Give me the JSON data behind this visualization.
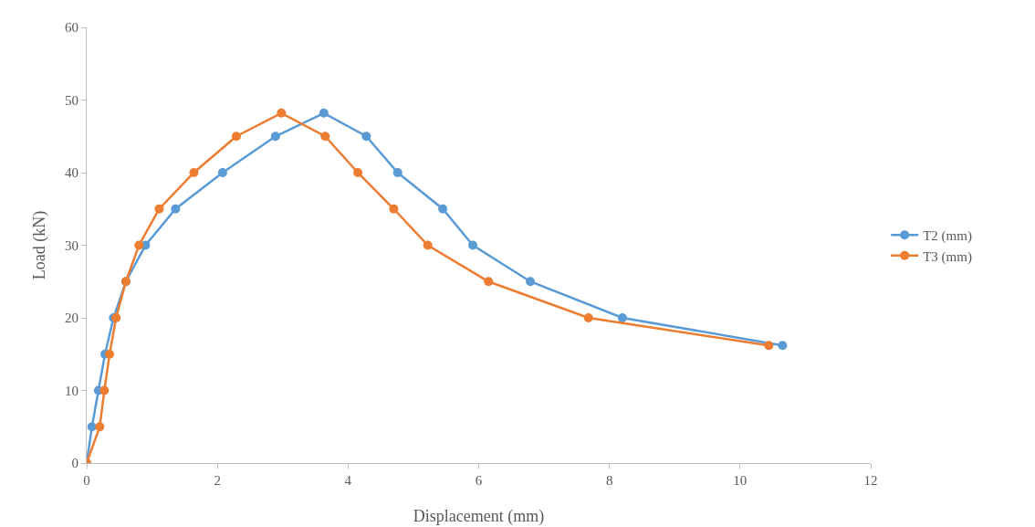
{
  "chart_data": {
    "type": "line",
    "xlabel": "Displacement (mm)",
    "ylabel": "Load (kN)",
    "xlim": [
      0,
      12
    ],
    "xticks": [
      0,
      2,
      4,
      6,
      8,
      10,
      12
    ],
    "ylim": [
      0,
      60
    ],
    "yticks": [
      0,
      10,
      20,
      30,
      40,
      50,
      60
    ],
    "grid": false,
    "legend": "right",
    "marker": "circle",
    "line_style": "solid",
    "series": [
      {
        "name": "T2 (mm)",
        "color": "#5b9bd5",
        "x": [
          0,
          0.08,
          0.18,
          0.28,
          0.41,
          0.6,
          0.9,
          1.36,
          2.08,
          2.89,
          3.63,
          4.28,
          4.76,
          5.45,
          5.91,
          6.79,
          8.2,
          10.65
        ],
        "values": [
          0,
          5,
          10,
          15,
          20,
          25,
          30,
          35,
          40,
          45,
          48.2,
          45,
          40,
          35,
          30,
          25,
          20,
          16.2
        ]
      },
      {
        "name": "T3 (mm)",
        "color": "#ed7d31",
        "x": [
          0,
          0.2,
          0.27,
          0.35,
          0.45,
          0.6,
          0.8,
          1.11,
          1.64,
          2.29,
          2.98,
          3.65,
          4.15,
          4.7,
          5.22,
          6.15,
          7.68,
          10.44
        ],
        "values": [
          0,
          5,
          10,
          15,
          20,
          25,
          30,
          35,
          40,
          45,
          48.2,
          45,
          40,
          35,
          30,
          25,
          20,
          16.2
        ]
      }
    ]
  }
}
